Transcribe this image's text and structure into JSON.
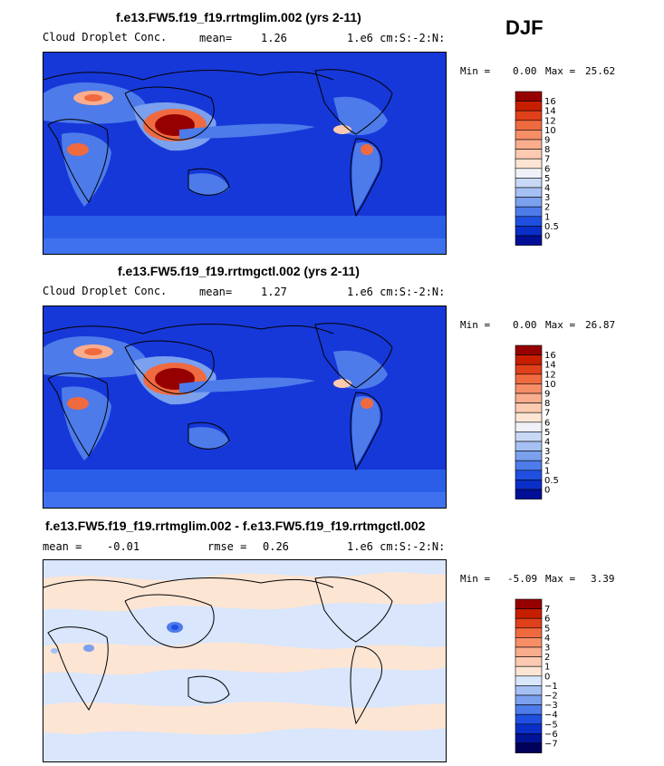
{
  "season": "DJF",
  "chart_data": [
    {
      "type": "heatmap",
      "title": "f.e13.FW5.f19_f19.rrtmglim.002 (yrs 2-11)",
      "variable": "Cloud Droplet Conc.",
      "mean_label": "mean=",
      "mean_value": "1.26",
      "units": "1.e6 cm:S:-2:N:",
      "min_label": "Min =",
      "min_value": "0.00",
      "max_label": "Max =",
      "max_value": "25.62",
      "colorbar_labels": [
        "16",
        "14",
        "12",
        "10",
        "9",
        "8",
        "7",
        "6",
        "5",
        "4",
        "3",
        "2",
        "1",
        "0.5",
        "0"
      ],
      "colorbar_colors": [
        "#960000",
        "#c81e00",
        "#e0401a",
        "#f06a40",
        "#f68e68",
        "#f9ad8d",
        "#fccab0",
        "#fde5d4",
        "#eef2f8",
        "#c8d8f5",
        "#a5c0f3",
        "#7aa0ee",
        "#4d7bea",
        "#1e4fe0",
        "#0a2ec8",
        "#000f96"
      ]
    },
    {
      "type": "heatmap",
      "title": "f.e13.FW5.f19_f19.rrtmgctl.002 (yrs 2-11)",
      "variable": "Cloud Droplet Conc.",
      "mean_label": "mean=",
      "mean_value": "1.27",
      "units": "1.e6 cm:S:-2:N:",
      "min_label": "Min =",
      "min_value": "0.00",
      "max_label": "Max =",
      "max_value": "26.87",
      "colorbar_labels": [
        "16",
        "14",
        "12",
        "10",
        "9",
        "8",
        "7",
        "6",
        "5",
        "4",
        "3",
        "2",
        "1",
        "0.5",
        "0"
      ],
      "colorbar_colors": [
        "#960000",
        "#c81e00",
        "#e0401a",
        "#f06a40",
        "#f68e68",
        "#f9ad8d",
        "#fccab0",
        "#fde5d4",
        "#eef2f8",
        "#c8d8f5",
        "#a5c0f3",
        "#7aa0ee",
        "#4d7bea",
        "#1e4fe0",
        "#0a2ec8",
        "#000f96"
      ]
    },
    {
      "type": "heatmap",
      "title": "f.e13.FW5.f19_f19.rrtmglim.002 - f.e13.FW5.f19_f19.rrtmgctl.002",
      "mean_label": "mean =",
      "mean_value": "-0.01",
      "rmse_label": "rmse =",
      "rmse_value": "0.26",
      "units": "1.e6 cm:S:-2:N:",
      "min_label": "Min =",
      "min_value": "-5.09",
      "max_label": "Max =",
      "max_value": "3.39",
      "colorbar_labels": [
        "7",
        "6",
        "5",
        "4",
        "3",
        "2",
        "1",
        "0",
        "−1",
        "−2",
        "−3",
        "−4",
        "−5",
        "−6",
        "−7"
      ],
      "colorbar_colors": [
        "#960000",
        "#c81e00",
        "#e0401a",
        "#f06a40",
        "#f68e68",
        "#f9ad8d",
        "#fccab0",
        "#fde5d4",
        "#d9e6fb",
        "#a5c0f3",
        "#7aa0ee",
        "#4d7bea",
        "#1e4fe0",
        "#0a2ec8",
        "#001496",
        "#00005a"
      ]
    }
  ]
}
